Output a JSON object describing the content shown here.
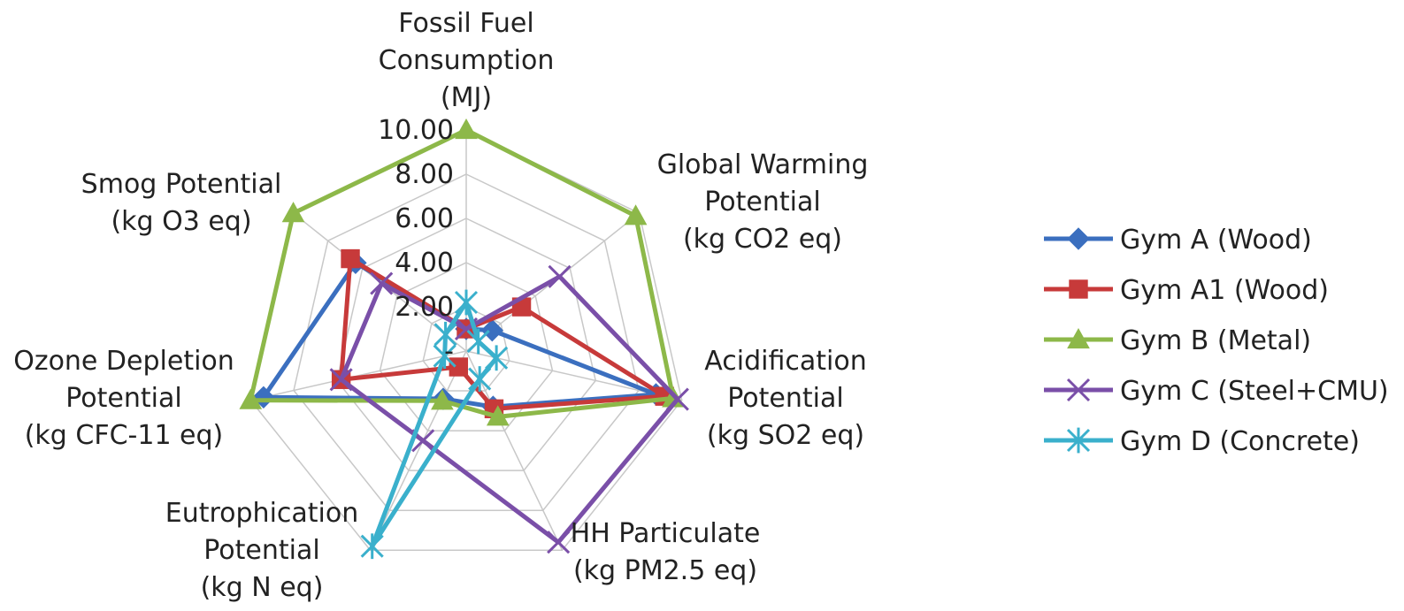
{
  "chart_data": {
    "type": "radar",
    "categories": [
      [
        "Fossil Fuel",
        "Consumption",
        "(MJ)"
      ],
      [
        "Global Warming",
        "Potential",
        "(kg CO2 eq)"
      ],
      [
        "Acidification",
        "Potential",
        "(kg SO2 eq)"
      ],
      [
        "HH Particulate",
        "(kg PM2.5 eq)"
      ],
      [
        "Eutrophication",
        "Potential",
        "(kg N eq)"
      ],
      [
        "Ozone Depletion",
        "Potential",
        "(kg CFC-11 eq)"
      ],
      [
        "Smog Potential",
        "(kg O3 eq)"
      ]
    ],
    "tick_labels": [
      "-",
      "2.00",
      "4.00",
      "6.00",
      "8.00",
      "10.00"
    ],
    "rlim": [
      0,
      10
    ],
    "grid": true,
    "legend_position": "right",
    "series": [
      {
        "name": "Gym A (Wood)",
        "color": "#3b6fbf",
        "marker": "diamond",
        "values": [
          1.0,
          1.5,
          8.8,
          2.8,
          2.4,
          9.4,
          6.4
        ]
      },
      {
        "name": "Gym A1 (Wood)",
        "color": "#c73a3a",
        "marker": "square",
        "values": [
          1.0,
          3.2,
          9.2,
          2.9,
          0.8,
          5.8,
          6.7
        ]
      },
      {
        "name": "Gym B (Metal)",
        "color": "#8db849",
        "marker": "triangle",
        "values": [
          10.0,
          9.8,
          9.6,
          3.3,
          2.5,
          10.0,
          10.0
        ]
      },
      {
        "name": "Gym C (Steel+CMU)",
        "color": "#7a4fa8",
        "marker": "x",
        "values": [
          1.0,
          5.4,
          9.8,
          9.6,
          4.5,
          5.8,
          4.9
        ]
      },
      {
        "name": "Gym D (Concrete)",
        "color": "#3ab0cc",
        "marker": "asterisk",
        "values": [
          2.2,
          0.7,
          1.4,
          1.4,
          9.8,
          1.0,
          1.2
        ]
      }
    ]
  }
}
